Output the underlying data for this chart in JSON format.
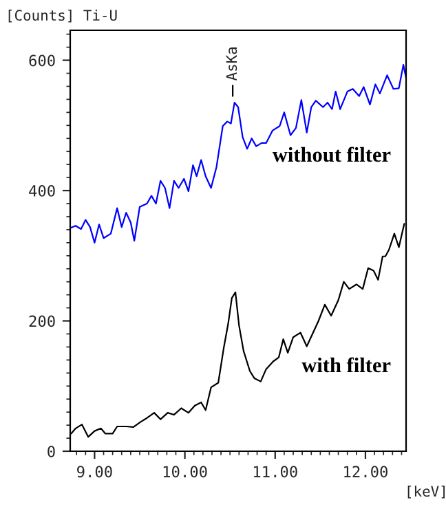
{
  "chart_data": {
    "type": "line",
    "xlabel": "[keV]",
    "ylabel": "[Counts] Ti-U",
    "xlim": [
      8.73,
      12.45
    ],
    "ylim": [
      0,
      646
    ],
    "xticks": [
      {
        "value": 9,
        "label": "9.00"
      },
      {
        "value": 10,
        "label": "10.00"
      },
      {
        "value": 11,
        "label": "11.00"
      },
      {
        "value": 12,
        "label": "12.00"
      }
    ],
    "yticks": [
      0,
      200,
      400,
      600
    ],
    "grid": false,
    "legend": false,
    "annotations": [
      {
        "text": "AsKa",
        "x": 10.53,
        "y": 545
      }
    ],
    "series": [
      {
        "name": "without filter",
        "color": "#0000ff",
        "x": [
          8.74,
          8.79,
          8.85,
          8.9,
          8.95,
          9.0,
          9.05,
          9.1,
          9.18,
          9.25,
          9.3,
          9.35,
          9.4,
          9.44,
          9.5,
          9.58,
          9.63,
          9.68,
          9.73,
          9.78,
          9.83,
          9.88,
          9.93,
          9.99,
          10.04,
          10.09,
          10.13,
          10.18,
          10.23,
          10.29,
          10.35,
          10.42,
          10.47,
          10.51,
          10.55,
          10.59,
          10.64,
          10.69,
          10.74,
          10.79,
          10.85,
          10.9,
          10.97,
          11.05,
          11.1,
          11.17,
          11.23,
          11.29,
          11.35,
          11.4,
          11.45,
          11.53,
          11.58,
          11.63,
          11.67,
          11.72,
          11.8,
          11.86,
          11.93,
          11.98,
          12.05,
          12.11,
          12.16,
          12.24,
          12.31,
          12.37,
          12.42,
          12.45
        ],
        "values": [
          343,
          346,
          341,
          355,
          344,
          320,
          348,
          327,
          334,
          373,
          344,
          366,
          351,
          323,
          375,
          380,
          392,
          380,
          415,
          404,
          373,
          415,
          404,
          418,
          399,
          439,
          422,
          447,
          422,
          404,
          436,
          499,
          506,
          503,
          535,
          528,
          482,
          464,
          480,
          468,
          473,
          473,
          492,
          499,
          520,
          485,
          496,
          539,
          489,
          528,
          538,
          528,
          535,
          525,
          552,
          525,
          552,
          556,
          545,
          559,
          532,
          563,
          549,
          577,
          556,
          557,
          593,
          573
        ]
      },
      {
        "name": "with filter",
        "color": "#000000",
        "x": [
          8.74,
          8.79,
          8.86,
          8.93,
          9.0,
          9.07,
          9.12,
          9.2,
          9.25,
          9.35,
          9.43,
          9.51,
          9.58,
          9.66,
          9.73,
          9.81,
          9.88,
          9.96,
          10.04,
          10.11,
          10.18,
          10.23,
          10.29,
          10.37,
          10.43,
          10.48,
          10.52,
          10.56,
          10.6,
          10.65,
          10.72,
          10.77,
          10.84,
          10.9,
          10.98,
          11.04,
          11.09,
          11.14,
          11.2,
          11.28,
          11.35,
          11.41,
          11.48,
          11.55,
          11.62,
          11.7,
          11.76,
          11.82,
          11.9,
          11.97,
          12.03,
          12.09,
          12.14,
          12.19,
          12.22,
          12.26,
          12.32,
          12.37,
          12.43
        ],
        "values": [
          27,
          35,
          41,
          22,
          31,
          35,
          27,
          27,
          38,
          38,
          37,
          45,
          51,
          59,
          49,
          59,
          56,
          66,
          59,
          70,
          75,
          63,
          98,
          105,
          158,
          196,
          235,
          244,
          193,
          154,
          123,
          112,
          107,
          126,
          138,
          144,
          172,
          151,
          175,
          182,
          161,
          179,
          200,
          225,
          208,
          232,
          260,
          249,
          256,
          249,
          281,
          277,
          263,
          299,
          299,
          309,
          334,
          313,
          349
        ]
      }
    ]
  }
}
